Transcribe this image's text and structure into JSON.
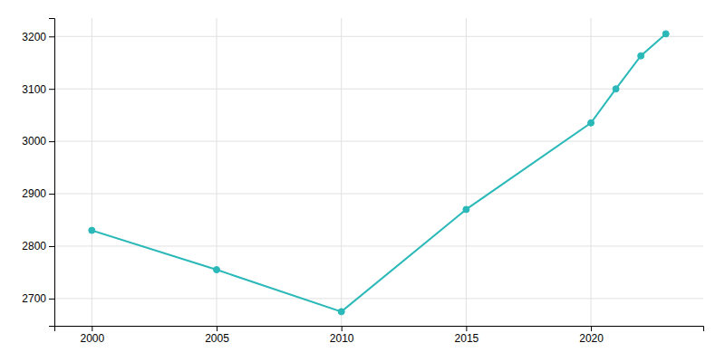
{
  "chart_data": {
    "type": "line",
    "x": [
      2000,
      2005,
      2010,
      2015,
      2020,
      2021,
      2022,
      2023
    ],
    "values": [
      2830,
      2755,
      2675,
      2870,
      3035,
      3100,
      3163,
      3205
    ],
    "color": "#2ab8b8",
    "marker": "circle",
    "xlim": [
      1998.5,
      2024.5
    ],
    "ylim": [
      2648,
      3235
    ],
    "xticks": [
      2000,
      2005,
      2010,
      2015,
      2020
    ],
    "yticks": [
      2700,
      2800,
      2900,
      3000,
      3100,
      3200
    ],
    "grid": true
  }
}
